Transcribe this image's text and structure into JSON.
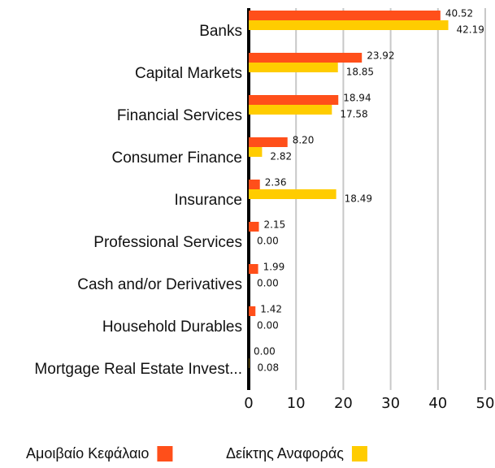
{
  "chart_data": {
    "type": "bar",
    "orientation": "horizontal",
    "categories": [
      "Banks",
      "Capital Markets",
      "Financial Services",
      "Consumer Finance",
      "Insurance",
      "Professional Services",
      "Cash and/or Derivatives",
      "Household Durables",
      "Mortgage Real Estate Invest..."
    ],
    "series": [
      {
        "name": "Αμοιβαίο Κεφάλαιο",
        "color": "#ff4f1a",
        "values": [
          40.52,
          23.92,
          18.94,
          8.2,
          2.36,
          2.15,
          1.99,
          1.42,
          0
        ],
        "value_labels": [
          "40.52",
          "23.92",
          "18.94",
          "8.20",
          "2.36",
          "2.15",
          "1.99",
          "1.42",
          "0.00"
        ]
      },
      {
        "name": "Δείκτης Αναφοράς",
        "color": "#ffcc00",
        "values": [
          42.19,
          18.85,
          17.58,
          2.82,
          18.49,
          0,
          0,
          0,
          0.08
        ],
        "value_labels": [
          "42.19",
          "18.85",
          "17.58",
          "2.82",
          "18.49",
          "0.00",
          "0.00",
          "0.00",
          "0.08"
        ]
      }
    ],
    "xlim": [
      0,
      50
    ],
    "xticks": [
      0,
      10,
      20,
      30,
      40,
      50
    ],
    "grid": true,
    "legend": "bottom"
  }
}
